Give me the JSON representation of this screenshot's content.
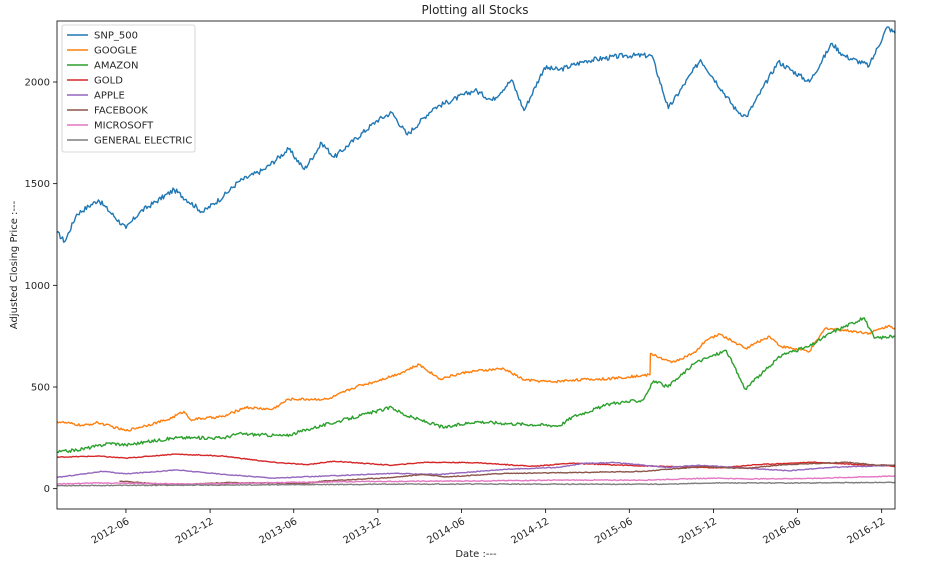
{
  "chart_data": {
    "type": "line",
    "title": "Plotting all Stocks",
    "xlabel": "Date :---",
    "ylabel": "Adjusted Closing Price :---",
    "x_range": [
      "2012-01-03",
      "2016-12-30"
    ],
    "ylim": [
      -100,
      2300
    ],
    "y_ticks": [
      0,
      500,
      1000,
      1500,
      2000
    ],
    "x_ticks": [
      {
        "date": "2012-06-01",
        "label": "2012-06"
      },
      {
        "date": "2012-12-01",
        "label": "2012-12"
      },
      {
        "date": "2013-06-01",
        "label": "2013-06"
      },
      {
        "date": "2013-12-01",
        "label": "2013-12"
      },
      {
        "date": "2014-06-01",
        "label": "2014-06"
      },
      {
        "date": "2014-12-01",
        "label": "2014-12"
      },
      {
        "date": "2015-06-01",
        "label": "2015-06"
      },
      {
        "date": "2015-12-01",
        "label": "2015-12"
      },
      {
        "date": "2016-06-01",
        "label": "2016-06"
      },
      {
        "date": "2016-12-01",
        "label": "2016-12"
      }
    ],
    "grid": false,
    "legend_position": "top-left",
    "series": [
      {
        "name": "SNP_500",
        "color": "#1f77b4",
        "points": [
          [
            "2012-01-03",
            1260
          ],
          [
            "2012-01-20",
            1215
          ],
          [
            "2012-02-15",
            1350
          ],
          [
            "2012-04-02",
            1420
          ],
          [
            "2012-06-01",
            1280
          ],
          [
            "2012-07-01",
            1360
          ],
          [
            "2012-09-14",
            1470
          ],
          [
            "2012-11-15",
            1360
          ],
          [
            "2012-12-31",
            1440
          ],
          [
            "2013-02-01",
            1510
          ],
          [
            "2013-03-29",
            1570
          ],
          [
            "2013-05-21",
            1670
          ],
          [
            "2013-06-24",
            1570
          ],
          [
            "2013-08-01",
            1700
          ],
          [
            "2013-08-28",
            1630
          ],
          [
            "2013-11-29",
            1810
          ],
          [
            "2013-12-31",
            1850
          ],
          [
            "2014-02-03",
            1740
          ],
          [
            "2014-03-31",
            1870
          ],
          [
            "2014-06-30",
            1960
          ],
          [
            "2014-08-07",
            1910
          ],
          [
            "2014-09-18",
            2010
          ],
          [
            "2014-10-15",
            1860
          ],
          [
            "2014-11-28",
            2070
          ],
          [
            "2014-12-31",
            2060
          ],
          [
            "2015-02-27",
            2105
          ],
          [
            "2015-05-21",
            2130
          ],
          [
            "2015-07-20",
            2130
          ],
          [
            "2015-08-25",
            1870
          ],
          [
            "2015-11-03",
            2110
          ],
          [
            "2016-01-20",
            1860
          ],
          [
            "2016-02-11",
            1830
          ],
          [
            "2016-04-20",
            2100
          ],
          [
            "2016-06-27",
            2000
          ],
          [
            "2016-08-15",
            2190
          ],
          [
            "2016-09-09",
            2130
          ],
          [
            "2016-11-04",
            2080
          ],
          [
            "2016-12-13",
            2270
          ],
          [
            "2016-12-30",
            2240
          ]
        ]
      },
      {
        "name": "GOOGLE",
        "color": "#ff7f0e",
        "points": [
          [
            "2012-01-03",
            330
          ],
          [
            "2012-03-01",
            310
          ],
          [
            "2012-04-01",
            325
          ],
          [
            "2012-06-01",
            285
          ],
          [
            "2012-09-01",
            340
          ],
          [
            "2012-10-05",
            380
          ],
          [
            "2012-10-19",
            340
          ],
          [
            "2012-12-31",
            355
          ],
          [
            "2013-02-15",
            400
          ],
          [
            "2013-04-15",
            390
          ],
          [
            "2013-05-21",
            440
          ],
          [
            "2013-08-15",
            440
          ],
          [
            "2013-10-18",
            505
          ],
          [
            "2013-11-15",
            520
          ],
          [
            "2014-01-15",
            565
          ],
          [
            "2014-03-01",
            610
          ],
          [
            "2014-04-15",
            540
          ],
          [
            "2014-06-15",
            575
          ],
          [
            "2014-09-01",
            590
          ],
          [
            "2014-10-15",
            535
          ],
          [
            "2014-12-15",
            525
          ],
          [
            "2015-01-30",
            535
          ],
          [
            "2015-04-15",
            540
          ],
          [
            "2015-07-16",
            560
          ],
          [
            "2015-07-17",
            665
          ],
          [
            "2015-09-01",
            620
          ],
          [
            "2015-10-23",
            670
          ],
          [
            "2015-11-15",
            730
          ],
          [
            "2015-12-15",
            760
          ],
          [
            "2016-02-09",
            690
          ],
          [
            "2016-04-01",
            750
          ],
          [
            "2016-04-25",
            700
          ],
          [
            "2016-06-27",
            675
          ],
          [
            "2016-08-01",
            790
          ],
          [
            "2016-11-04",
            765
          ],
          [
            "2016-12-15",
            800
          ],
          [
            "2016-12-30",
            790
          ]
        ]
      },
      {
        "name": "AMAZON",
        "color": "#2ca02c",
        "points": [
          [
            "2012-01-03",
            180
          ],
          [
            "2012-02-15",
            190
          ],
          [
            "2012-04-01",
            210
          ],
          [
            "2012-04-27",
            225
          ],
          [
            "2012-06-01",
            215
          ],
          [
            "2012-09-15",
            250
          ],
          [
            "2012-12-31",
            250
          ],
          [
            "2013-01-31",
            270
          ],
          [
            "2013-05-15",
            260
          ],
          [
            "2013-07-15",
            300
          ],
          [
            "2013-10-25",
            360
          ],
          [
            "2013-12-31",
            400
          ],
          [
            "2014-01-31",
            360
          ],
          [
            "2014-04-25",
            300
          ],
          [
            "2014-07-01",
            330
          ],
          [
            "2014-09-15",
            320
          ],
          [
            "2014-12-31",
            310
          ],
          [
            "2015-01-30",
            355
          ],
          [
            "2015-04-24",
            420
          ],
          [
            "2015-06-30",
            435
          ],
          [
            "2015-07-24",
            530
          ],
          [
            "2015-08-24",
            500
          ],
          [
            "2015-10-23",
            620
          ],
          [
            "2015-12-29",
            680
          ],
          [
            "2016-02-08",
            490
          ],
          [
            "2016-04-29",
            660
          ],
          [
            "2016-06-27",
            700
          ],
          [
            "2016-08-15",
            770
          ],
          [
            "2016-10-24",
            840
          ],
          [
            "2016-11-15",
            740
          ],
          [
            "2016-12-30",
            750
          ]
        ]
      },
      {
        "name": "GOLD",
        "color": "#d62728",
        "points": [
          [
            "2012-01-03",
            155
          ],
          [
            "2012-04-01",
            160
          ],
          [
            "2012-06-01",
            150
          ],
          [
            "2012-09-15",
            170
          ],
          [
            "2012-12-31",
            160
          ],
          [
            "2013-04-15",
            130
          ],
          [
            "2013-06-28",
            118
          ],
          [
            "2013-08-28",
            135
          ],
          [
            "2013-12-31",
            115
          ],
          [
            "2014-03-15",
            130
          ],
          [
            "2014-06-30",
            128
          ],
          [
            "2014-11-05",
            110
          ],
          [
            "2015-01-22",
            125
          ],
          [
            "2015-06-30",
            112
          ],
          [
            "2015-12-17",
            102
          ],
          [
            "2016-03-01",
            118
          ],
          [
            "2016-07-06",
            130
          ],
          [
            "2016-11-15",
            115
          ],
          [
            "2016-12-30",
            110
          ]
        ]
      },
      {
        "name": "APPLE",
        "color": "#9467bd",
        "points": [
          [
            "2012-01-03",
            55
          ],
          [
            "2012-04-09",
            85
          ],
          [
            "2012-06-01",
            73
          ],
          [
            "2012-09-19",
            92
          ],
          [
            "2012-12-31",
            70
          ],
          [
            "2013-04-19",
            52
          ],
          [
            "2013-10-15",
            68
          ],
          [
            "2013-12-31",
            75
          ],
          [
            "2014-04-15",
            70
          ],
          [
            "2014-09-01",
            95
          ],
          [
            "2014-12-31",
            105
          ],
          [
            "2015-02-23",
            125
          ],
          [
            "2015-05-01",
            128
          ],
          [
            "2015-08-24",
            105
          ],
          [
            "2015-11-01",
            115
          ],
          [
            "2016-05-12",
            88
          ],
          [
            "2016-08-15",
            105
          ],
          [
            "2016-12-30",
            115
          ]
        ]
      },
      {
        "name": "FACEBOOK",
        "color": "#8c564b",
        "points": [
          [
            "2012-05-18",
            38
          ],
          [
            "2012-09-04",
            18
          ],
          [
            "2013-01-15",
            30
          ],
          [
            "2013-06-28",
            25
          ],
          [
            "2013-08-01",
            37
          ],
          [
            "2013-12-31",
            55
          ],
          [
            "2014-03-10",
            70
          ],
          [
            "2014-04-28",
            58
          ],
          [
            "2014-09-01",
            75
          ],
          [
            "2014-12-31",
            78
          ],
          [
            "2015-06-30",
            85
          ],
          [
            "2015-11-03",
            108
          ],
          [
            "2016-02-11",
            100
          ],
          [
            "2016-05-01",
            118
          ],
          [
            "2016-09-15",
            130
          ],
          [
            "2016-11-15",
            117
          ],
          [
            "2016-12-30",
            115
          ]
        ]
      },
      {
        "name": "MICROSOFT",
        "color": "#e377c2",
        "points": [
          [
            "2012-01-03",
            23
          ],
          [
            "2012-04-01",
            28
          ],
          [
            "2012-11-15",
            23
          ],
          [
            "2013-05-01",
            30
          ],
          [
            "2013-10-25",
            35
          ],
          [
            "2014-06-30",
            38
          ],
          [
            "2014-12-31",
            42
          ],
          [
            "2015-06-30",
            42
          ],
          [
            "2015-12-01",
            52
          ],
          [
            "2016-02-11",
            48
          ],
          [
            "2016-06-27",
            50
          ],
          [
            "2016-12-30",
            62
          ]
        ]
      },
      {
        "name": "GENERAL ELECTRIC",
        "color": "#7f7f7f",
        "points": [
          [
            "2012-01-03",
            15
          ],
          [
            "2012-12-31",
            18
          ],
          [
            "2013-12-31",
            22
          ],
          [
            "2014-06-30",
            23
          ],
          [
            "2014-12-31",
            22
          ],
          [
            "2015-08-24",
            22
          ],
          [
            "2015-12-01",
            28
          ],
          [
            "2016-06-27",
            28
          ],
          [
            "2016-12-30",
            31
          ]
        ]
      }
    ]
  }
}
